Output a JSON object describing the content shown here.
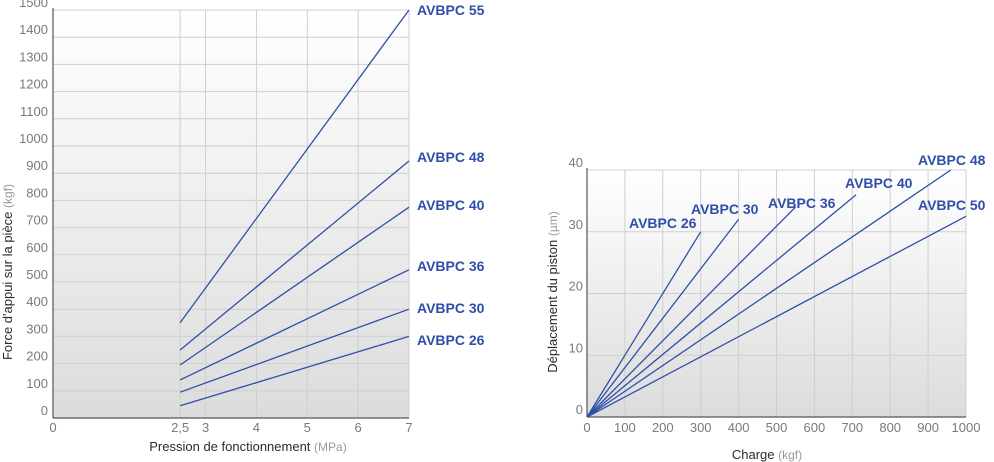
{
  "colors": {
    "line": "#2f4fa8",
    "label": "#2f4fa8",
    "plot_bg_top": "#ffffff",
    "plot_bg_bottom": "#dcdcdc",
    "grid": "#cfcfcf",
    "axis": "#555555"
  },
  "chart_data": [
    {
      "type": "line",
      "xlabel": "Pression de fonctionnement",
      "xunit": "MPa",
      "ylabel": "Force d'appui sur la pièce",
      "yunit": "kgf",
      "xlim": [
        0,
        7
      ],
      "ylim": [
        0,
        1500
      ],
      "xticks": [
        0,
        2.5,
        3,
        4,
        5,
        6,
        7
      ],
      "xtick_labels": [
        "0",
        "2,5",
        "3",
        "4",
        "5",
        "6",
        "7"
      ],
      "yticks": [
        0,
        100,
        200,
        300,
        400,
        500,
        600,
        700,
        800,
        900,
        1000,
        1100,
        1200,
        1300,
        1400,
        1500
      ],
      "ytick_labels": [
        "0",
        "100",
        "200",
        "300",
        "400",
        "500",
        "600",
        "700",
        "800",
        "900",
        "1000",
        "1100",
        "1200",
        "1300",
        "1400",
        "1500"
      ],
      "grid": true,
      "series": [
        {
          "name": "AVBPC 55",
          "x": [
            2.5,
            7
          ],
          "y": [
            350,
            1500
          ]
        },
        {
          "name": "AVBPC 48",
          "x": [
            2.5,
            7
          ],
          "y": [
            250,
            945
          ]
        },
        {
          "name": "AVBPC 40",
          "x": [
            2.5,
            7
          ],
          "y": [
            195,
            775
          ]
        },
        {
          "name": "AVBPC 36",
          "x": [
            2.5,
            7
          ],
          "y": [
            140,
            545
          ]
        },
        {
          "name": "AVBPC 30",
          "x": [
            2.5,
            7
          ],
          "y": [
            95,
            400
          ]
        },
        {
          "name": "AVBPC 26",
          "x": [
            2.5,
            7
          ],
          "y": [
            45,
            300
          ]
        }
      ]
    },
    {
      "type": "line",
      "xlabel": "Charge",
      "xunit": "kgf",
      "ylabel": "Déplacement du piston",
      "yunit": "µm",
      "xlim": [
        0,
        1000
      ],
      "ylim": [
        0,
        40
      ],
      "xticks": [
        0,
        100,
        200,
        300,
        400,
        500,
        600,
        700,
        800,
        900,
        1000
      ],
      "xtick_labels": [
        "0",
        "100",
        "200",
        "300",
        "400",
        "500",
        "600",
        "700",
        "800",
        "900",
        "1000"
      ],
      "yticks": [
        0,
        10,
        20,
        30,
        40
      ],
      "ytick_labels": [
        "0",
        "10",
        "20",
        "30",
        "40"
      ],
      "grid": true,
      "series": [
        {
          "name": "AVBPC 26",
          "x": [
            0,
            300
          ],
          "y": [
            0,
            30
          ]
        },
        {
          "name": "AVBPC 30",
          "x": [
            0,
            400
          ],
          "y": [
            0,
            32
          ]
        },
        {
          "name": "AVBPC 36",
          "x": [
            0,
            550
          ],
          "y": [
            0,
            34
          ]
        },
        {
          "name": "AVBPC 40",
          "x": [
            0,
            710
          ],
          "y": [
            0,
            36
          ]
        },
        {
          "name": "AVBPC 48",
          "x": [
            0,
            960
          ],
          "y": [
            0,
            40
          ]
        },
        {
          "name": "AVBPC 50",
          "x": [
            0,
            1000
          ],
          "y": [
            0,
            32.5
          ]
        }
      ]
    }
  ]
}
